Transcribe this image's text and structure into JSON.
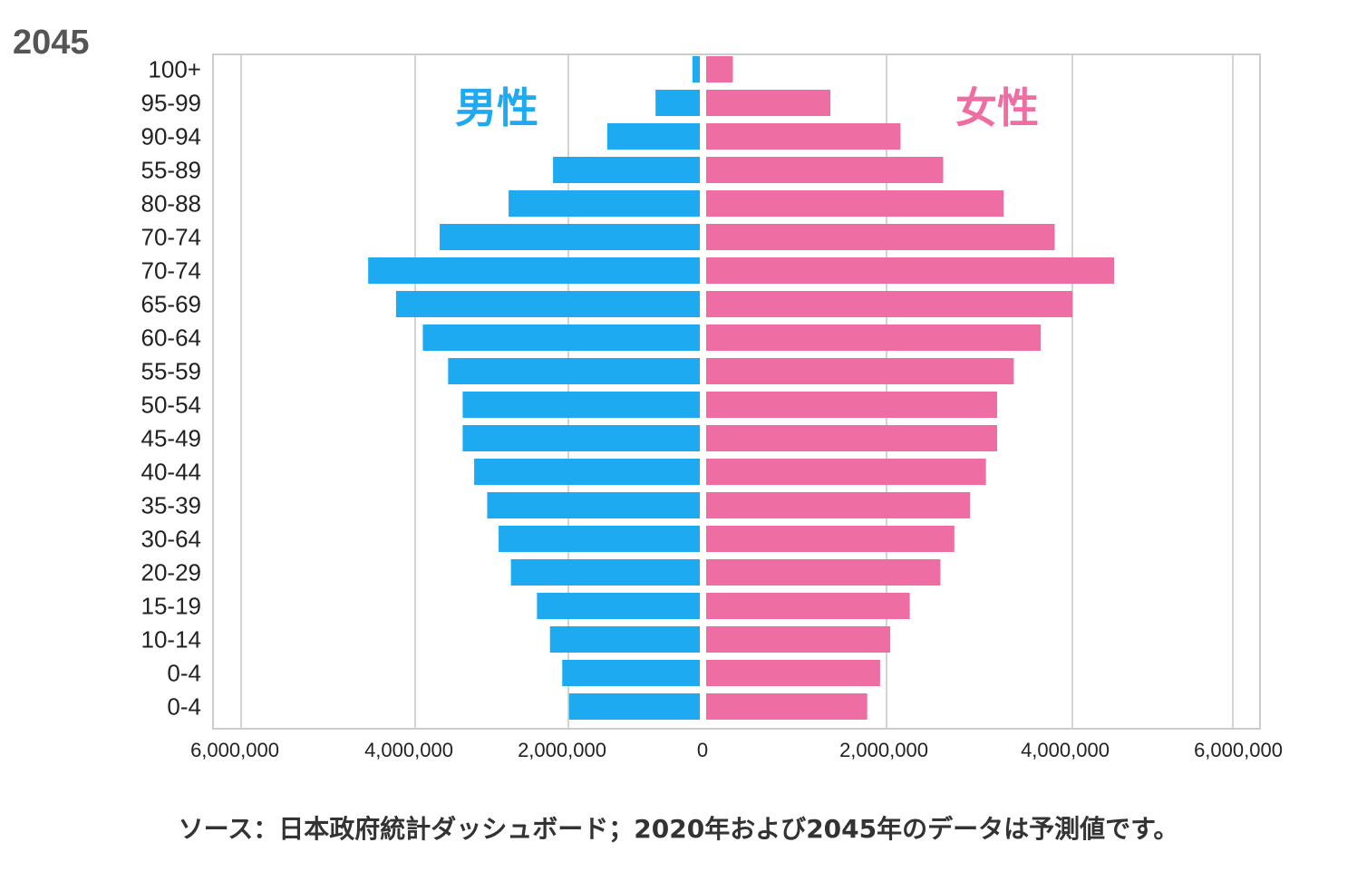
{
  "year_title": "2045",
  "chart_data": {
    "type": "bar",
    "orientation": "horizontal-pyramid",
    "categories": [
      "100+",
      "95-99",
      "90-94",
      "55-89",
      "80-88",
      "70-74",
      "70-74",
      "65-69",
      "60-64",
      "55-59",
      "50-54",
      "45-49",
      "40-44",
      "35-39",
      "30-64",
      "20-29",
      "15-19",
      "10-14",
      "0-4",
      "0-4"
    ],
    "series": [
      {
        "name": "男性",
        "color": "#1DAAF0",
        "side": "left",
        "values": [
          150000,
          700000,
          1420000,
          2200000,
          2780000,
          3680000,
          4540000,
          4220000,
          3900000,
          3570000,
          3380000,
          3380000,
          3230000,
          3060000,
          2910000,
          2750000,
          2410000,
          2240000,
          2080000,
          1990000
        ]
      },
      {
        "name": "女性",
        "color": "#EE6EA3",
        "side": "right",
        "values": [
          330000,
          1390000,
          2150000,
          2610000,
          3260000,
          3810000,
          4520000,
          4000000,
          3660000,
          3370000,
          3190000,
          3190000,
          3070000,
          2900000,
          2730000,
          2580000,
          2250000,
          2040000,
          1930000,
          1790000
        ]
      }
    ],
    "x_ticks_left": [
      "6,000,000",
      "4,000,000",
      "2,000,000"
    ],
    "x_tick_zero": "0",
    "x_ticks_right": [
      "2,000,000",
      "4,000,000",
      "6,000,000"
    ],
    "xlim": [
      -6000000,
      6000000
    ],
    "grid": true
  },
  "source": "ソース：日本政府統計ダッシュボード；2020年および2045年のデータは予測値です。"
}
